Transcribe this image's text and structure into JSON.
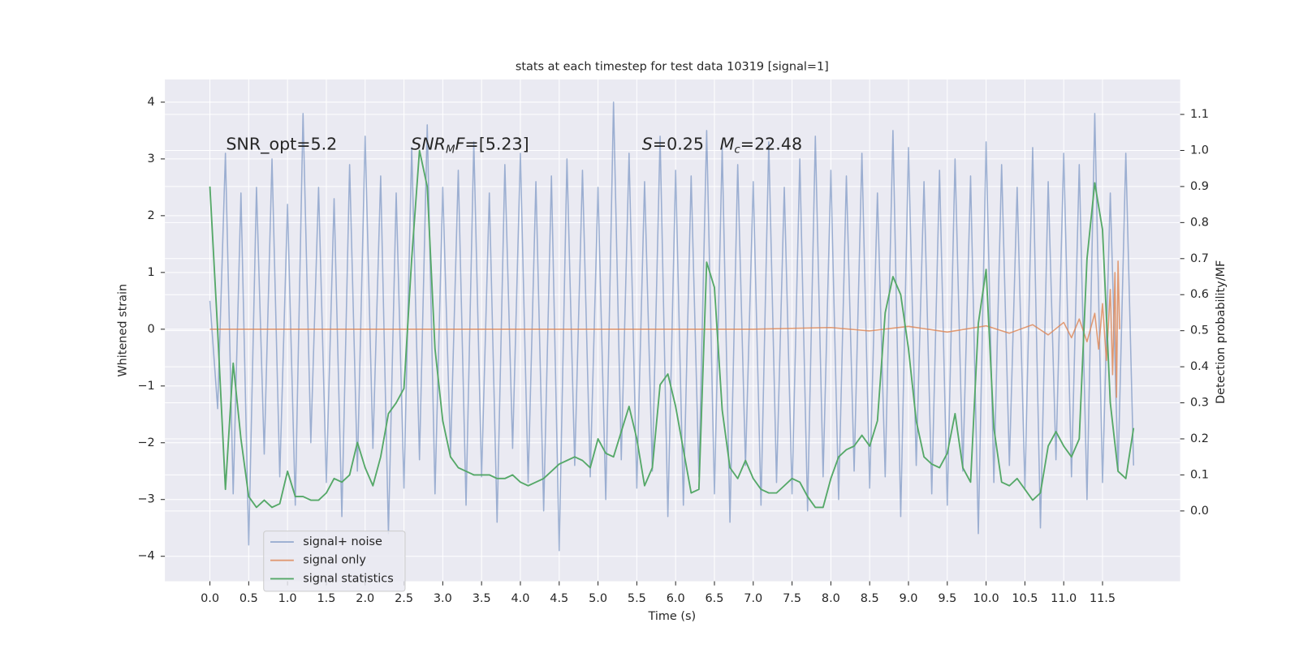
{
  "chart_data": {
    "type": "line",
    "title": "stats at each timestep for test data 10319 [signal=1]",
    "xlabel": "Time (s)",
    "ylabel": "Whitened strain",
    "y2label": "Detection probability/MF",
    "xlim": [
      -0.58,
      12.5
    ],
    "ylim": [
      -4.44,
      4.4
    ],
    "y2lim": [
      -0.195,
      1.197
    ],
    "xticks": [
      {
        "value": 0,
        "label": "0.0"
      },
      0.5,
      {
        "value": 1,
        "label": "1.0"
      },
      1.5,
      {
        "value": 2,
        "label": "2.0"
      },
      2.5,
      {
        "value": 3,
        "label": "3.0"
      },
      3.5,
      {
        "value": 4,
        "label": "4.0"
      },
      4.5,
      {
        "value": 5,
        "label": "5.0"
      },
      5.5,
      {
        "value": 6,
        "label": "6.0"
      },
      6.5,
      {
        "value": 7,
        "label": "7.0"
      },
      7.5,
      {
        "value": 8,
        "label": "8.0"
      },
      8.5,
      {
        "value": 9,
        "label": "9.0"
      },
      9.5,
      {
        "value": 10,
        "label": "10.0"
      },
      10.5,
      {
        "value": 11,
        "label": "11.0"
      },
      11.5
    ],
    "yticks": [
      {
        "value": -4,
        "label": "−4"
      },
      {
        "value": -3,
        "label": "−3"
      },
      {
        "value": -2,
        "label": "−2"
      },
      {
        "value": -1,
        "label": "−1"
      },
      0,
      1,
      2,
      3,
      4
    ],
    "y2ticks": [
      {
        "value": 0,
        "label": "0.0"
      },
      0.1,
      0.2,
      0.3,
      0.4,
      0.5,
      0.6,
      0.7,
      0.8,
      0.9,
      {
        "value": 1,
        "label": "1.0"
      },
      1.1
    ],
    "grid": true,
    "legend": "lower left",
    "annotations": [
      {
        "segments": [
          {
            "text": "SNR_opt=5.2"
          }
        ]
      },
      {
        "segments": [
          {
            "text": "SNR",
            "italic": true
          },
          {
            "text": "M",
            "italic": true,
            "sub": true
          },
          {
            "text": "F",
            "italic": true
          },
          {
            "text": "=[5.23]"
          }
        ]
      },
      {
        "segments": [
          {
            "text": "S",
            "italic": true
          },
          {
            "text": "=0.25   "
          },
          {
            "text": "M",
            "italic": true
          },
          {
            "text": "c",
            "italic": true,
            "sub": true
          },
          {
            "text": "=22.48"
          }
        ]
      }
    ],
    "series": [
      {
        "name": "signal+ noise",
        "color": "#4c72b0",
        "opacity": 0.5,
        "x": [
          0.0,
          0.1,
          0.2,
          0.3,
          0.4,
          0.5,
          0.6,
          0.7,
          0.8,
          0.9,
          1.0,
          1.1,
          1.2,
          1.3,
          1.4,
          1.5,
          1.6,
          1.7,
          1.8,
          1.9,
          2.0,
          2.1,
          2.2,
          2.3,
          2.4,
          2.5,
          2.6,
          2.7,
          2.8,
          2.9,
          3.0,
          3.1,
          3.2,
          3.3,
          3.4,
          3.5,
          3.6,
          3.7,
          3.8,
          3.9,
          4.0,
          4.1,
          4.2,
          4.3,
          4.4,
          4.5,
          4.6,
          4.7,
          4.8,
          4.9,
          5.0,
          5.1,
          5.2,
          5.3,
          5.4,
          5.5,
          5.6,
          5.7,
          5.8,
          5.9,
          6.0,
          6.1,
          6.2,
          6.3,
          6.4,
          6.5,
          6.6,
          6.7,
          6.8,
          6.9,
          7.0,
          7.1,
          7.2,
          7.3,
          7.4,
          7.5,
          7.6,
          7.7,
          7.8,
          7.9,
          8.0,
          8.1,
          8.2,
          8.3,
          8.4,
          8.5,
          8.6,
          8.7,
          8.8,
          8.9,
          9.0,
          9.1,
          9.2,
          9.3,
          9.4,
          9.5,
          9.6,
          9.7,
          9.8,
          9.9,
          10.0,
          10.1,
          10.2,
          10.3,
          10.4,
          10.5,
          10.6,
          10.7,
          10.8,
          10.9,
          11.0,
          11.1,
          11.2,
          11.3,
          11.4,
          11.5,
          11.6,
          11.7,
          11.8,
          11.9
        ],
        "values": [
          0.5,
          -1.4,
          3.1,
          -2.9,
          2.4,
          -3.8,
          2.5,
          -2.2,
          3.0,
          -2.6,
          2.2,
          -3.1,
          3.8,
          -2.0,
          2.5,
          -2.7,
          2.3,
          -3.3,
          2.9,
          -2.5,
          3.4,
          -2.1,
          2.7,
          -3.6,
          2.4,
          -2.8,
          3.2,
          -2.3,
          3.6,
          -2.9,
          2.5,
          -2.2,
          2.8,
          -3.1,
          3.3,
          -2.6,
          2.4,
          -3.4,
          2.9,
          -2.1,
          3.1,
          -2.7,
          2.6,
          -3.2,
          2.7,
          -3.9,
          3.0,
          -2.4,
          2.8,
          -2.6,
          2.5,
          -3.0,
          4.0,
          -2.3,
          3.1,
          -2.8,
          2.6,
          -2.5,
          3.4,
          -3.3,
          2.8,
          -3.1,
          2.7,
          -2.6,
          3.5,
          -2.9,
          3.2,
          -3.4,
          2.9,
          -2.4,
          2.6,
          -3.1,
          3.3,
          -2.7,
          2.5,
          -2.9,
          3.0,
          -3.2,
          3.4,
          -2.6,
          2.8,
          -3.0,
          2.7,
          -2.5,
          3.1,
          -2.8,
          2.4,
          -2.6,
          3.5,
          -3.3,
          3.2,
          -2.4,
          2.6,
          -2.9,
          2.8,
          -3.1,
          3.0,
          -2.5,
          2.7,
          -3.6,
          3.3,
          -2.7,
          2.9,
          -2.4,
          2.5,
          -2.8,
          3.2,
          -3.5,
          2.6,
          -2.3,
          3.1,
          -2.6,
          2.9,
          -3.0,
          3.8,
          -2.7,
          2.4,
          -2.5,
          3.1,
          -2.4
        ]
      },
      {
        "name": "signal only",
        "color": "#dd8452",
        "opacity": 0.8,
        "x": [
          0,
          7.0,
          8.0,
          8.5,
          9.0,
          9.5,
          10.0,
          10.3,
          10.6,
          10.8,
          11.0,
          11.1,
          11.2,
          11.3,
          11.4,
          11.45,
          11.5,
          11.55,
          11.6,
          11.63,
          11.66,
          11.68,
          11.7,
          11.72
        ],
        "values": [
          0,
          0,
          0.03,
          -0.03,
          0.05,
          -0.05,
          0.06,
          -0.07,
          0.08,
          -0.1,
          0.12,
          -0.15,
          0.18,
          -0.22,
          0.28,
          -0.35,
          0.45,
          -0.55,
          0.7,
          -0.8,
          1.0,
          -1.2,
          1.2,
          0
        ]
      },
      {
        "name": "signal statistics",
        "color": "#55a868",
        "axis": "y2",
        "opacity": 1,
        "x": [
          0.0,
          0.1,
          0.2,
          0.3,
          0.4,
          0.5,
          0.6,
          0.7,
          0.8,
          0.9,
          1.0,
          1.1,
          1.2,
          1.3,
          1.4,
          1.5,
          1.6,
          1.7,
          1.8,
          1.9,
          2.0,
          2.1,
          2.2,
          2.3,
          2.4,
          2.5,
          2.6,
          2.7,
          2.8,
          2.9,
          3.0,
          3.1,
          3.2,
          3.3,
          3.4,
          3.5,
          3.6,
          3.7,
          3.8,
          3.9,
          4.0,
          4.1,
          4.2,
          4.3,
          4.4,
          4.5,
          4.6,
          4.7,
          4.8,
          4.9,
          5.0,
          5.1,
          5.2,
          5.3,
          5.4,
          5.5,
          5.6,
          5.7,
          5.8,
          5.9,
          6.0,
          6.1,
          6.2,
          6.3,
          6.4,
          6.5,
          6.6,
          6.7,
          6.8,
          6.9,
          7.0,
          7.1,
          7.2,
          7.3,
          7.4,
          7.5,
          7.6,
          7.7,
          7.8,
          7.9,
          8.0,
          8.1,
          8.2,
          8.3,
          8.4,
          8.5,
          8.6,
          8.7,
          8.8,
          8.9,
          9.0,
          9.1,
          9.2,
          9.3,
          9.4,
          9.5,
          9.6,
          9.7,
          9.8,
          9.9,
          10.0,
          10.1,
          10.2,
          10.3,
          10.4,
          10.5,
          10.6,
          10.7,
          10.8,
          10.9,
          11.0,
          11.1,
          11.2,
          11.3,
          11.4,
          11.5,
          11.6,
          11.7,
          11.8,
          11.9
        ],
        "values": [
          0.9,
          0.5,
          0.06,
          0.41,
          0.2,
          0.04,
          0.01,
          0.03,
          0.01,
          0.02,
          0.11,
          0.04,
          0.04,
          0.03,
          0.03,
          0.05,
          0.09,
          0.08,
          0.1,
          0.19,
          0.12,
          0.07,
          0.15,
          0.27,
          0.3,
          0.34,
          0.7,
          1.0,
          0.9,
          0.45,
          0.25,
          0.15,
          0.12,
          0.11,
          0.1,
          0.1,
          0.1,
          0.09,
          0.09,
          0.1,
          0.08,
          0.07,
          0.08,
          0.09,
          0.11,
          0.13,
          0.14,
          0.15,
          0.14,
          0.12,
          0.2,
          0.16,
          0.15,
          0.22,
          0.29,
          0.2,
          0.07,
          0.12,
          0.35,
          0.38,
          0.29,
          0.17,
          0.05,
          0.06,
          0.69,
          0.62,
          0.28,
          0.12,
          0.09,
          0.14,
          0.09,
          0.06,
          0.05,
          0.05,
          0.07,
          0.09,
          0.08,
          0.04,
          0.01,
          0.01,
          0.09,
          0.15,
          0.17,
          0.18,
          0.21,
          0.18,
          0.25,
          0.55,
          0.65,
          0.6,
          0.45,
          0.25,
          0.15,
          0.13,
          0.12,
          0.16,
          0.27,
          0.12,
          0.08,
          0.52,
          0.67,
          0.23,
          0.08,
          0.07,
          0.09,
          0.06,
          0.03,
          0.05,
          0.18,
          0.22,
          0.18,
          0.15,
          0.2,
          0.7,
          0.91,
          0.78,
          0.3,
          0.11,
          0.09,
          0.23
        ]
      }
    ]
  }
}
